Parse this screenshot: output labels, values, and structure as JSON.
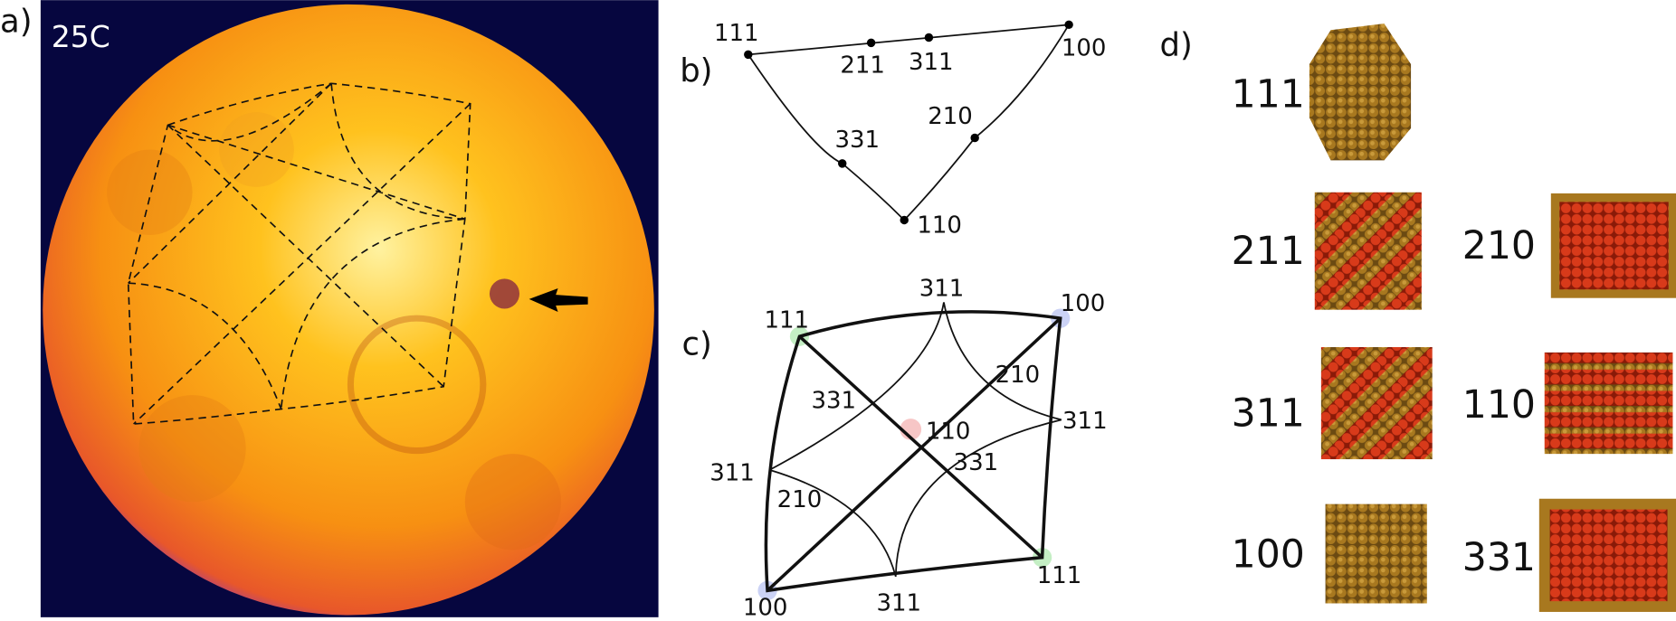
{
  "panel_a": {
    "label": "a)",
    "temperature": "25C"
  },
  "panel_b": {
    "label": "b)",
    "points": [
      "111",
      "211",
      "311",
      "100",
      "331",
      "210",
      "110"
    ]
  },
  "panel_c": {
    "label": "c)",
    "labels": [
      "111",
      "311",
      "100",
      "331",
      "110",
      "210",
      "311",
      "331",
      "311",
      "210",
      "311",
      "100",
      "111"
    ]
  },
  "panel_d": {
    "label": "d)",
    "facets": [
      "111",
      "211",
      "210",
      "311",
      "110",
      "100",
      "331"
    ]
  }
}
